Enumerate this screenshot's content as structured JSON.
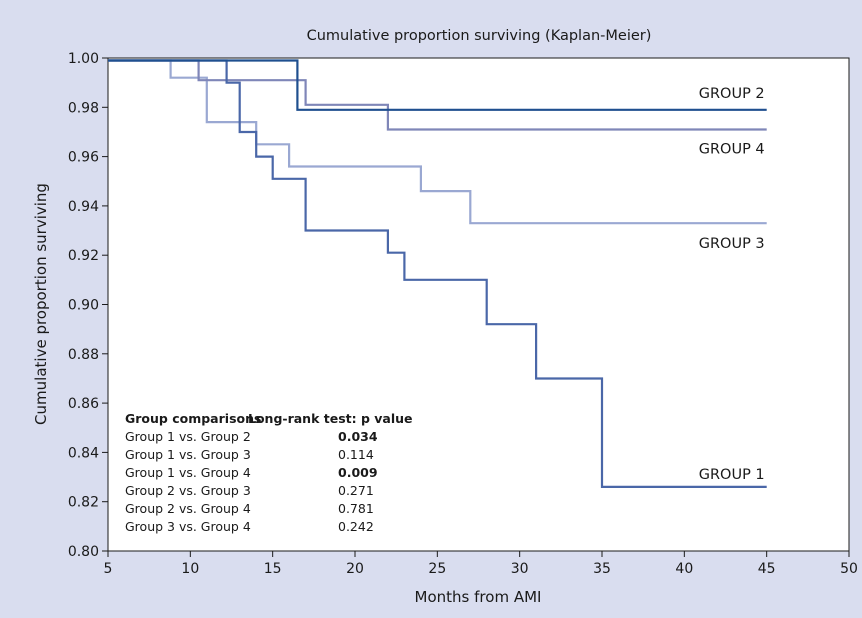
{
  "chart_data": {
    "type": "line",
    "step": true,
    "title": "Cumulative proportion surviving (Kaplan-Meier)",
    "xlabel": "Months from AMI",
    "ylabel": "Cumulative proportion surviving",
    "xlim": [
      5,
      50
    ],
    "ylim": [
      0.8,
      1.0
    ],
    "xticks": [
      5,
      10,
      15,
      20,
      25,
      30,
      35,
      40,
      45,
      50
    ],
    "yticks": [
      0.8,
      0.82,
      0.84,
      0.86,
      0.88,
      0.9,
      0.92,
      0.94,
      0.96,
      0.98,
      1.0
    ],
    "ytick_labels": [
      "0.80",
      "0.82",
      "0.84",
      "0.86",
      "0.88",
      "0.90",
      "0.92",
      "0.94",
      "0.96",
      "0.98",
      "1.00"
    ],
    "grid": false,
    "series": [
      {
        "name": "GROUP 1",
        "color": "#4a67a8",
        "points": [
          [
            5,
            0.999
          ],
          [
            12.2,
            0.999
          ],
          [
            12.2,
            0.99
          ],
          [
            13.0,
            0.99
          ],
          [
            13.0,
            0.97
          ],
          [
            14.0,
            0.97
          ],
          [
            14.0,
            0.96
          ],
          [
            15.0,
            0.96
          ],
          [
            15.0,
            0.951
          ],
          [
            17.0,
            0.951
          ],
          [
            17.0,
            0.93
          ],
          [
            22.0,
            0.93
          ],
          [
            22.0,
            0.921
          ],
          [
            23.0,
            0.921
          ],
          [
            23.0,
            0.91
          ],
          [
            28.0,
            0.91
          ],
          [
            28.0,
            0.892
          ],
          [
            31.0,
            0.892
          ],
          [
            31.0,
            0.87
          ],
          [
            35.0,
            0.87
          ],
          [
            35.0,
            0.826
          ],
          [
            45,
            0.826
          ]
        ]
      },
      {
        "name": "GROUP 2",
        "color": "#1f4f8f",
        "points": [
          [
            5,
            0.999
          ],
          [
            16.5,
            0.999
          ],
          [
            16.5,
            0.979
          ],
          [
            45,
            0.979
          ]
        ]
      },
      {
        "name": "GROUP 3",
        "color": "#9aa8d2",
        "points": [
          [
            5,
            0.999
          ],
          [
            8.8,
            0.999
          ],
          [
            8.8,
            0.992
          ],
          [
            11.0,
            0.992
          ],
          [
            11.0,
            0.974
          ],
          [
            14.0,
            0.974
          ],
          [
            14.0,
            0.965
          ],
          [
            16.0,
            0.965
          ],
          [
            16.0,
            0.956
          ],
          [
            24.0,
            0.956
          ],
          [
            24.0,
            0.946
          ],
          [
            27.0,
            0.946
          ],
          [
            27.0,
            0.933
          ],
          [
            45,
            0.933
          ]
        ]
      },
      {
        "name": "GROUP 4",
        "color": "#7f86b8",
        "points": [
          [
            5,
            0.999
          ],
          [
            10.5,
            0.999
          ],
          [
            10.5,
            0.991
          ],
          [
            17.0,
            0.991
          ],
          [
            17.0,
            0.981
          ],
          [
            22.0,
            0.981
          ],
          [
            22.0,
            0.971
          ],
          [
            45,
            0.971
          ]
        ]
      }
    ],
    "annotation_table": {
      "headers": [
        "Group comparisons",
        "Long-rank test: p value"
      ],
      "rows": [
        {
          "comparison": "Group 1 vs. Group 2",
          "p": "0.034",
          "bold": true
        },
        {
          "comparison": "Group 1 vs. Group 3",
          "p": "0.114",
          "bold": false
        },
        {
          "comparison": "Group 1 vs. Group 4",
          "p": "0.009",
          "bold": true
        },
        {
          "comparison": "Group 2 vs. Group 3",
          "p": "0.271",
          "bold": false
        },
        {
          "comparison": "Group 2 vs. Group 4",
          "p": "0.781",
          "bold": false
        },
        {
          "comparison": "Group 3 vs. Group 4",
          "p": "0.242",
          "bold": false
        }
      ]
    },
    "colors": {
      "background": "#d9ddef",
      "plot_area": "#ffffff",
      "axis": "#1a1a1a"
    }
  }
}
